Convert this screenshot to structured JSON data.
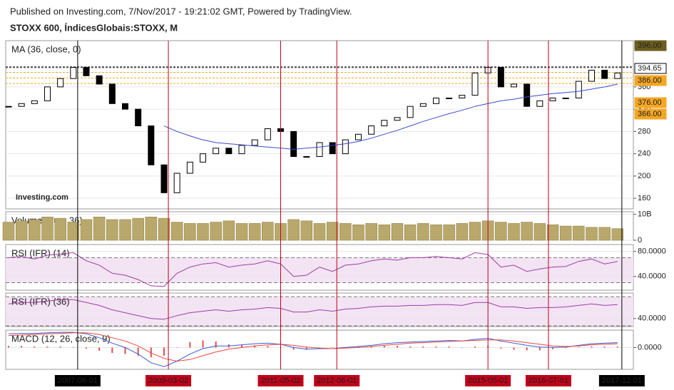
{
  "header": {
    "published": "Published on Investing.com, 7/Nov/2017 - 19:21:02 GMT, Powered by TradingView.",
    "symbol": "STOXX 600, ÍndicesGlobais:STOXX, M"
  },
  "time_axis": {
    "xlim": [
      "2006-02-01",
      "2018-02-01"
    ],
    "markers": [
      {
        "label": "2007-06-01",
        "color": "#000000"
      },
      {
        "label": "2009-03-02",
        "color": "#c0001a"
      },
      {
        "label": "2011-05-02",
        "color": "#c0001a"
      },
      {
        "label": "2012-06-01",
        "color": "#c0001a"
      },
      {
        "label": "2015-05-01",
        "color": "#c0001a"
      },
      {
        "label": "2016-07-01",
        "color": "#c0001a"
      },
      {
        "label": "2017-12-01",
        "color": "#000000"
      }
    ]
  },
  "chart_data": [
    {
      "type": "candlestick",
      "label": "MA (36, close, 0)",
      "logo": "Investing.com",
      "ylim": [
        141,
        443
      ],
      "yticks": [
        160,
        200,
        240,
        280,
        320,
        360
      ],
      "close": [
        325,
        330,
        335,
        360,
        375,
        395,
        380,
        365,
        330,
        320,
        290,
        220,
        170,
        205,
        225,
        240,
        250,
        240,
        255,
        265,
        285,
        280,
        235,
        235,
        260,
        240,
        265,
        275,
        290,
        300,
        305,
        325,
        330,
        340,
        340,
        345,
        385,
        395,
        360,
        365,
        325,
        335,
        340,
        340,
        370,
        390,
        375,
        385
      ],
      "ma": [
        null,
        null,
        null,
        null,
        null,
        null,
        null,
        null,
        null,
        null,
        null,
        null,
        290,
        280,
        272,
        265,
        260,
        258,
        256,
        254,
        252,
        250,
        248,
        250,
        252,
        255,
        258,
        262,
        268,
        275,
        282,
        290,
        298,
        305,
        312,
        318,
        325,
        330,
        335,
        338,
        342,
        345,
        348,
        350,
        352,
        356,
        360,
        365
      ],
      "ma_color": "#3b4bc8",
      "price_badges": [
        {
          "value": 396,
          "label": "396.00",
          "color": "#6b5e1e"
        },
        {
          "value": 394.65,
          "label": "394.65",
          "color": "#ffffff"
        },
        {
          "value": 386,
          "label": "386.00",
          "color": "#f5a623"
        },
        {
          "value": 376,
          "label": "376.00",
          "color": "#f5a623"
        },
        {
          "value": 366,
          "label": "366.00",
          "color": "#f5a623"
        }
      ]
    },
    {
      "type": "bar",
      "label": "Volume (true, 36)",
      "color": "#b9a86c",
      "ylim": [
        0,
        11000000000
      ],
      "yticks": [
        {
          "value": 10000000000,
          "label": "10B"
        },
        0
      ],
      "values": [
        7000000000.0,
        7500000000.0,
        8000000000.0,
        9000000000.0,
        8500000000.0,
        7000000000.0,
        8000000000.0,
        9000000000.0,
        8000000000.0,
        8000000000.0,
        8500000000.0,
        9000000000.0,
        8500000000.0,
        7000000000.0,
        6500000000.0,
        6500000000.0,
        7000000000.0,
        7500000000.0,
        6500000000.0,
        6500000000.0,
        7000000000.0,
        6500000000.0,
        8000000000.0,
        7500000000.0,
        6500000000.0,
        7000000000.0,
        6500000000.0,
        6000000000.0,
        6500000000.0,
        6000000000.0,
        6500000000.0,
        6000000000.0,
        6500000000.0,
        6000000000.0,
        6000000000.0,
        6500000000.0,
        7000000000.0,
        7500000000.0,
        7000000000.0,
        6500000000.0,
        7000000000.0,
        6500000000.0,
        6000000000.0,
        5500000000.0,
        5500000000.0,
        5000000000.0,
        5000000000.0,
        4500000000.0
      ]
    },
    {
      "type": "line",
      "label": "RSI (IFR) (14)",
      "color": "#a03ca8",
      "ylim": [
        18,
        91
      ],
      "bands": [
        30,
        70
      ],
      "yticks": [
        {
          "value": 80,
          "label": "80.0000"
        },
        {
          "value": 40,
          "label": "40.0000"
        }
      ],
      "values": [
        70,
        72,
        68,
        74,
        76,
        78,
        65,
        58,
        45,
        42,
        35,
        25,
        24,
        45,
        55,
        60,
        62,
        55,
        58,
        60,
        65,
        60,
        40,
        42,
        55,
        48,
        58,
        60,
        65,
        68,
        66,
        70,
        70,
        72,
        70,
        68,
        78,
        75,
        55,
        58,
        48,
        52,
        55,
        56,
        64,
        68,
        60,
        64
      ]
    },
    {
      "type": "line",
      "label": "RSI (IFR) (36)",
      "color": "#a03ca8",
      "ylim": [
        29,
        75
      ],
      "bands": [
        30,
        70
      ],
      "yticks": [
        {
          "value": 40,
          "label": "40.0000"
        }
      ],
      "values": [
        60,
        62,
        62,
        64,
        66,
        66,
        62,
        58,
        52,
        48,
        44,
        40,
        39,
        44,
        48,
        50,
        52,
        50,
        52,
        53,
        55,
        54,
        49,
        49,
        52,
        50,
        53,
        54,
        56,
        57,
        57,
        58,
        58,
        59,
        59,
        58,
        62,
        62,
        56,
        56,
        54,
        55,
        55,
        56,
        58,
        60,
        58,
        59
      ]
    },
    {
      "type": "macd",
      "label": "MACD (12, 26, close, 9)",
      "ylim": [
        -40,
        32
      ],
      "yticks": [
        {
          "value": 0,
          "label": "0.0000"
        }
      ],
      "macd": [
        25,
        26,
        26,
        27,
        28,
        28,
        25,
        18,
        8,
        0,
        -12,
        -28,
        -35,
        -25,
        -12,
        -2,
        3,
        3,
        5,
        7,
        8,
        6,
        0,
        -3,
        -2,
        -2,
        0,
        2,
        4,
        7,
        9,
        10,
        11,
        12,
        13,
        12,
        15,
        17,
        12,
        8,
        4,
        1,
        0,
        1,
        4,
        7,
        8,
        9
      ],
      "signal": [
        22,
        23,
        24,
        25,
        26,
        27,
        27,
        24,
        18,
        12,
        3,
        -10,
        -20,
        -25,
        -22,
        -15,
        -8,
        -3,
        0,
        3,
        5,
        6,
        4,
        1,
        -1,
        -2,
        -1,
        0,
        2,
        4,
        6,
        8,
        9,
        10,
        11,
        12,
        13,
        14,
        14,
        12,
        9,
        6,
        3,
        2,
        3,
        5,
        6,
        7
      ],
      "histogram": [
        3,
        3,
        2,
        2,
        2,
        1,
        -2,
        -6,
        -10,
        -12,
        -15,
        -18,
        -15,
        0,
        10,
        13,
        11,
        6,
        5,
        4,
        3,
        0,
        -4,
        -4,
        -1,
        0,
        1,
        2,
        2,
        3,
        3,
        2,
        2,
        2,
        2,
        0,
        2,
        3,
        -2,
        -4,
        -5,
        -5,
        -3,
        -1,
        1,
        2,
        2,
        2
      ],
      "macd_color": "#3d5bd9",
      "signal_color": "#e8463c",
      "histogram_color": "#e05050"
    }
  ]
}
